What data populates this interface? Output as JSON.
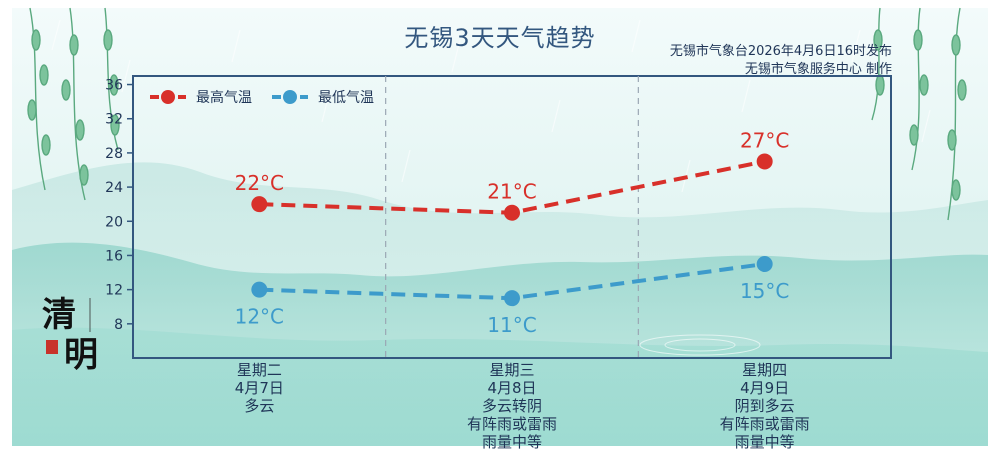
{
  "title": "无锡3天天气趋势",
  "credit": {
    "line1": "无锡市气象台2026年4月6日16时发布",
    "line2": "无锡市气象服务中心 制作"
  },
  "decoration": {
    "seal_text": "清明"
  },
  "colors": {
    "high": "#d8302a",
    "low": "#3d9bcb",
    "axis": "#33577f",
    "text": "#1f3557"
  },
  "chart_data": {
    "type": "line",
    "categories": [
      "星期二",
      "星期三",
      "星期四"
    ],
    "category_details": [
      [
        "星期二",
        "4月7日",
        "多云"
      ],
      [
        "星期三",
        "4月8日",
        "多云转阴",
        "有阵雨或雷雨",
        "雨量中等"
      ],
      [
        "星期四",
        "4月9日",
        "阴到多云",
        "有阵雨或雷雨",
        "雨量中等"
      ]
    ],
    "series": [
      {
        "name": "最高气温",
        "values": [
          22,
          21,
          27
        ],
        "labels": [
          "22°C",
          "21°C",
          "27°C"
        ],
        "color": "#d8302a"
      },
      {
        "name": "最低气温",
        "values": [
          12,
          11,
          15
        ],
        "labels": [
          "12°C",
          "11°C",
          "15°C"
        ],
        "color": "#3d9bcb"
      }
    ],
    "ylim": [
      4,
      37
    ],
    "yticks": [
      8,
      12,
      16,
      20,
      24,
      28,
      32,
      36
    ],
    "grid": "vertical-dashed",
    "legend": "top-left"
  }
}
